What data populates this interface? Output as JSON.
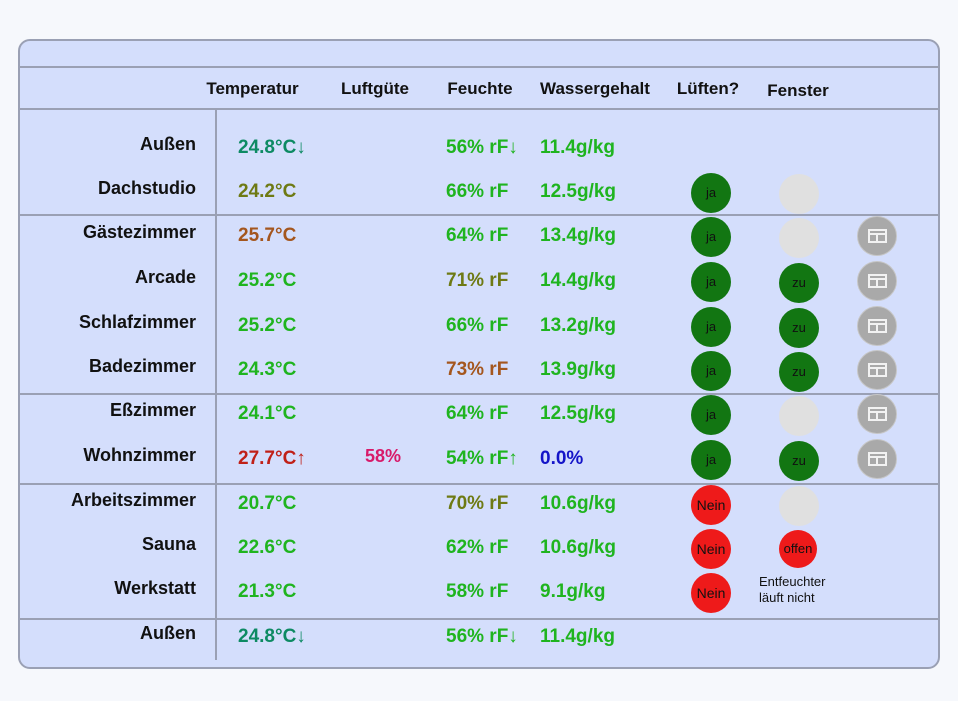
{
  "headers": {
    "temperatur": "Temperatur",
    "luftguete": "Luftgüte",
    "feuchte": "Feuchte",
    "wassergehalt": "Wassergehalt",
    "lueften": "Lüften?",
    "fenster": "Fenster"
  },
  "colors": {
    "teal": "#0d8a63",
    "olive": "#6e7a14",
    "brown": "#a4561e",
    "green": "#1fb41f",
    "red": "#c02018",
    "pink": "#d81a6a",
    "blue": "#1414c8"
  },
  "rows": [
    {
      "room": "Außen",
      "temp": "24.8°C↓",
      "temp_color": "teal",
      "humidity": "56% rF↓",
      "hum_color": "green",
      "water": "11.4g/kg",
      "water_color": "green"
    },
    {
      "room": "Dachstudio",
      "temp": "24.2°C",
      "temp_color": "olive",
      "humidity": "66% rF",
      "hum_color": "green",
      "water": "12.5g/kg",
      "water_color": "green",
      "lueften": "ja",
      "fenster_state": "unknown"
    },
    {
      "room": "Gästezimmer",
      "temp": "25.7°C",
      "temp_color": "brown",
      "humidity": "64% rF",
      "hum_color": "green",
      "water": "13.4g/kg",
      "water_color": "green",
      "lueften": "ja",
      "fenster_state": "unknown",
      "window_button": true
    },
    {
      "room": "Arcade",
      "temp": "25.2°C",
      "temp_color": "green",
      "humidity": "71% rF",
      "hum_color": "olive",
      "water": "14.4g/kg",
      "water_color": "green",
      "lueften": "ja",
      "fenster": "zu",
      "window_button": true
    },
    {
      "room": "Schlafzimmer",
      "temp": "25.2°C",
      "temp_color": "green",
      "humidity": "66% rF",
      "hum_color": "green",
      "water": "13.2g/kg",
      "water_color": "green",
      "lueften": "ja",
      "fenster": "zu",
      "window_button": true
    },
    {
      "room": "Badezimmer",
      "temp": "24.3°C",
      "temp_color": "green",
      "humidity": "73% rF",
      "hum_color": "brown",
      "water": "13.9g/kg",
      "water_color": "green",
      "lueften": "ja",
      "fenster": "zu",
      "window_button": true
    },
    {
      "room": "Eßzimmer",
      "temp": "24.1°C",
      "temp_color": "green",
      "humidity": "64% rF",
      "hum_color": "green",
      "water": "12.5g/kg",
      "water_color": "green",
      "lueften": "ja",
      "fenster_state": "unknown",
      "window_button": true
    },
    {
      "room": "Wohnzimmer",
      "temp": "27.7°C↑",
      "temp_color": "red",
      "luftguete": "58%",
      "humidity": "54% rF↑",
      "hum_color": "green",
      "water": "0.0%",
      "water_color": "blue",
      "lueften": "ja",
      "fenster": "zu",
      "window_button": true
    },
    {
      "room": "Arbeitszimmer",
      "temp": "20.7°C",
      "temp_color": "green",
      "humidity": "70% rF",
      "hum_color": "olive",
      "water": "10.6g/kg",
      "water_color": "green",
      "lueften": "Nein",
      "fenster_state": "unknown"
    },
    {
      "room": "Sauna",
      "temp": "22.6°C",
      "temp_color": "green",
      "humidity": "62% rF",
      "hum_color": "green",
      "water": "10.6g/kg",
      "water_color": "green",
      "lueften": "Nein",
      "fenster": "offen"
    },
    {
      "room": "Werkstatt",
      "temp": "21.3°C",
      "temp_color": "green",
      "humidity": "58% rF",
      "hum_color": "green",
      "water": "9.1g/kg",
      "water_color": "green",
      "lueften": "Nein",
      "note_line1": "Entfeuchter",
      "note_line2": "läuft nicht"
    },
    {
      "room": "Außen",
      "temp": "24.8°C↓",
      "temp_color": "teal",
      "humidity": "56% rF↓",
      "hum_color": "green",
      "water": "11.4g/kg",
      "water_color": "green"
    }
  ]
}
